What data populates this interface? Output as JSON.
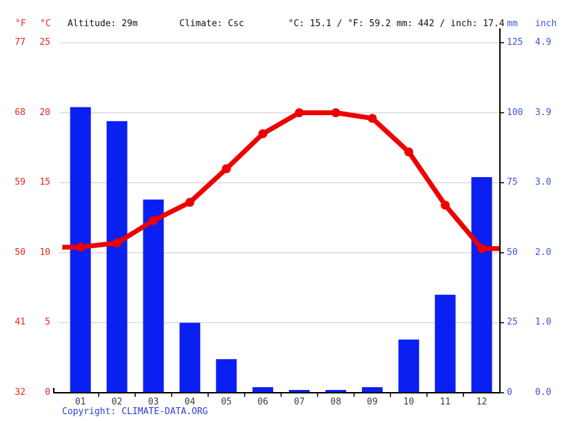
{
  "header": {
    "unit_f": "°F",
    "unit_c": "°C",
    "altitude": "Altitude: 29m",
    "climate": "Climate: Csc",
    "temp_summary": "°C: 15.1 / °F: 59.2",
    "precip_summary": "mm: 442 / inch: 17.4",
    "unit_mm": "mm",
    "unit_inch": "inch"
  },
  "footer": {
    "copyright_label": "Copyright:",
    "copyright_link": "CLIMATE-DATA.ORG"
  },
  "colors": {
    "bar_blue": "#0a1ff2",
    "blue_text": "#3a52e8",
    "link_blue": "#2c3bd4",
    "line_red": "#ee0000",
    "red_text": "#ee2222",
    "grid_gray": "#d6d6d6",
    "axis_black": "#000000",
    "month_text": "#3c3c3c"
  },
  "chart_data": {
    "type": "bar+line climate chart",
    "categories": [
      "01",
      "02",
      "03",
      "04",
      "05",
      "06",
      "07",
      "08",
      "09",
      "10",
      "11",
      "12"
    ],
    "series": [
      {
        "name": "Precipitation",
        "type": "bar",
        "unit": "mm",
        "values": [
          102,
          97,
          69,
          25,
          12,
          2,
          1,
          1,
          2,
          19,
          35,
          77
        ]
      },
      {
        "name": "Temperature",
        "type": "line",
        "unit": "°C",
        "values": [
          10.4,
          10.7,
          12.3,
          13.6,
          16.0,
          18.5,
          20.0,
          20.0,
          19.6,
          17.2,
          13.4,
          10.3
        ]
      }
    ],
    "axis_ticks": {
      "fahrenheit": [
        "77",
        "68",
        "59",
        "50",
        "41",
        "32"
      ],
      "celsius": [
        "25",
        "20",
        "15",
        "10",
        "5",
        "0"
      ],
      "mm": [
        "125",
        "100",
        "75",
        "50",
        "25",
        "0"
      ],
      "inch": [
        "4.9",
        "3.9",
        "3.0",
        "2.0",
        "1.0",
        "0.0"
      ]
    },
    "temp_axis": {
      "unit": "°C",
      "min": 0,
      "max": 25,
      "step": 5
    },
    "precip_axis": {
      "unit": "mm",
      "min": 0,
      "max": 125,
      "step": 25
    },
    "grid": true,
    "legend": "none",
    "summary": {
      "altitude_m": 29,
      "climate_class": "Csc",
      "avg_temp_c": 15.1,
      "avg_temp_f": 59.2,
      "annual_precip_mm": 442,
      "annual_precip_inch": 17.4
    }
  }
}
